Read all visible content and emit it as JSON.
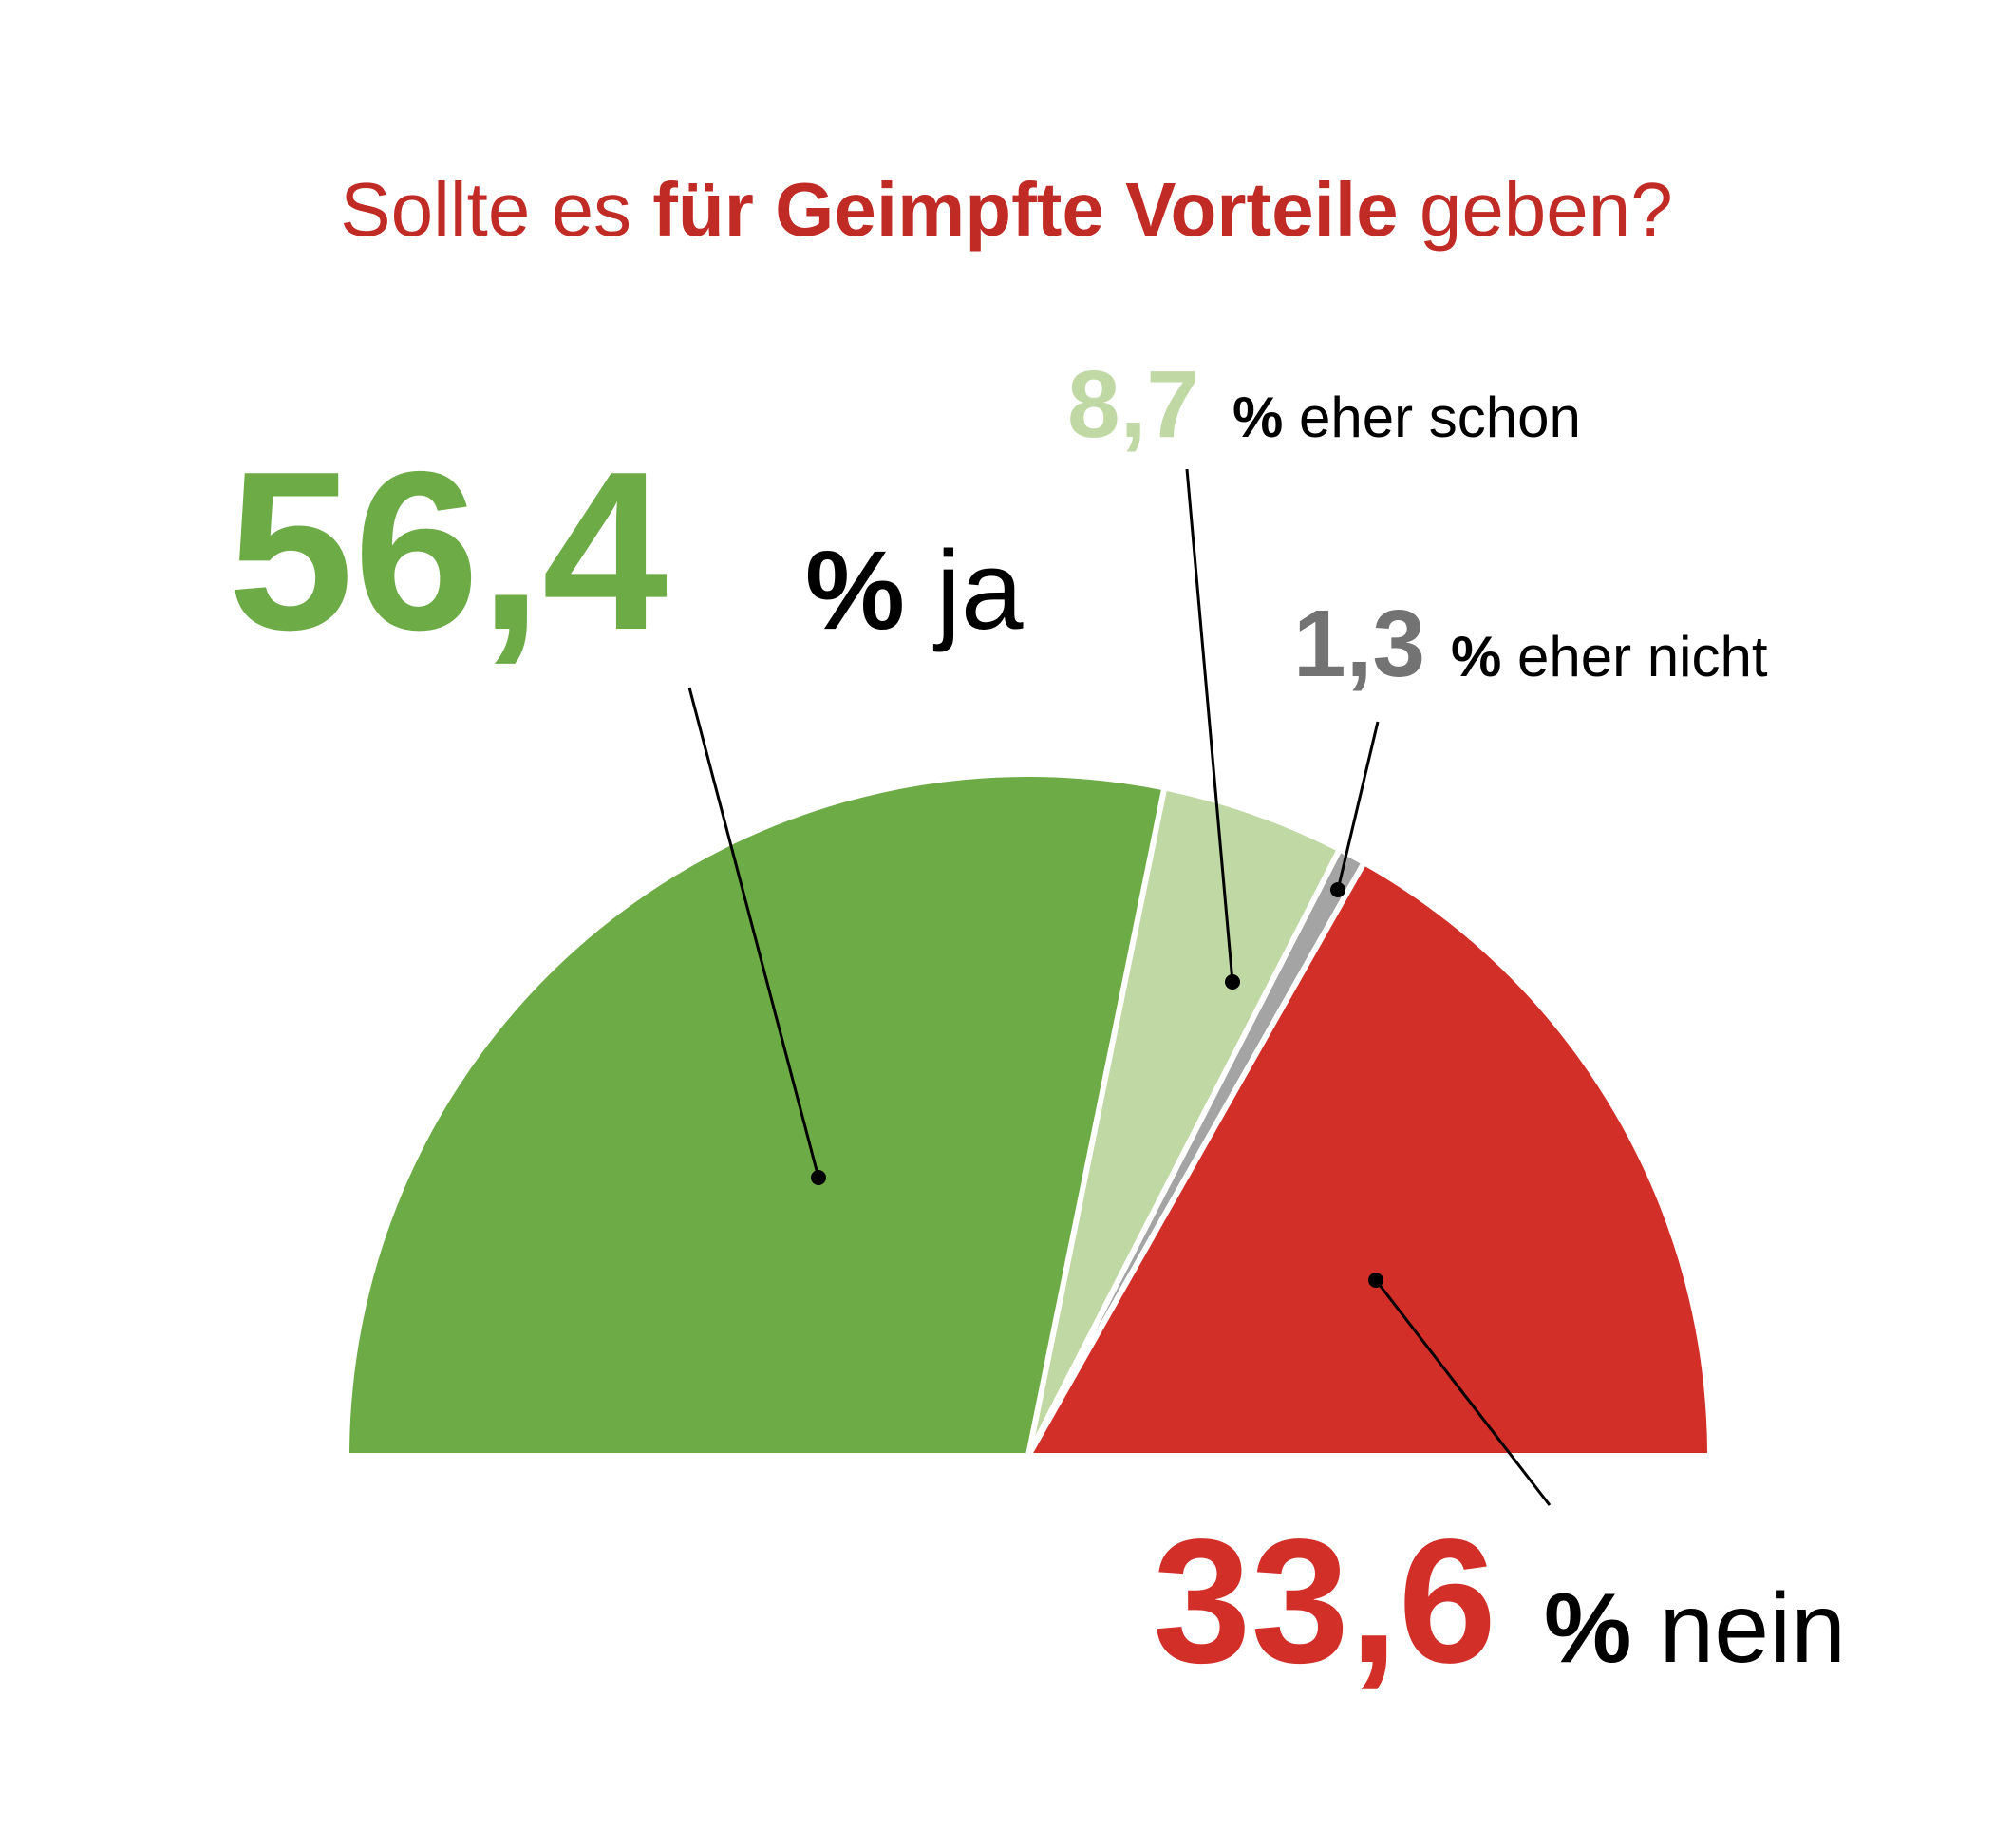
{
  "chart_data": {
    "type": "pie",
    "subtype": "half-donut",
    "title_parts": [
      {
        "text": "Sollte es ",
        "bold": false
      },
      {
        "text": "für Geimpfte Vorteile",
        "bold": true
      },
      {
        "text": " geben?",
        "bold": false
      }
    ],
    "slices": [
      {
        "key": "ja",
        "value": 56.4,
        "value_label": "56,4",
        "label": "ja",
        "color": "#6dab46"
      },
      {
        "key": "eher_schon",
        "value": 8.7,
        "value_label": "8,7",
        "label": "eher schon",
        "color": "#c0d8a4"
      },
      {
        "key": "eher_nicht",
        "value": 1.3,
        "value_label": "1,3",
        "label": "eher nicht",
        "color": "#a4a4a4"
      },
      {
        "key": "nein",
        "value": 33.6,
        "value_label": "33,6",
        "label": "nein",
        "color": "#d12f28"
      }
    ],
    "unit_symbol": "%",
    "value_label_colors": {
      "ja": "#6dab46",
      "eher_schon": "#c0d8a4",
      "eher_nicht": "#737373",
      "nein": "#d12f28"
    },
    "title_color": "#c12b26",
    "text_color": "#000000"
  }
}
